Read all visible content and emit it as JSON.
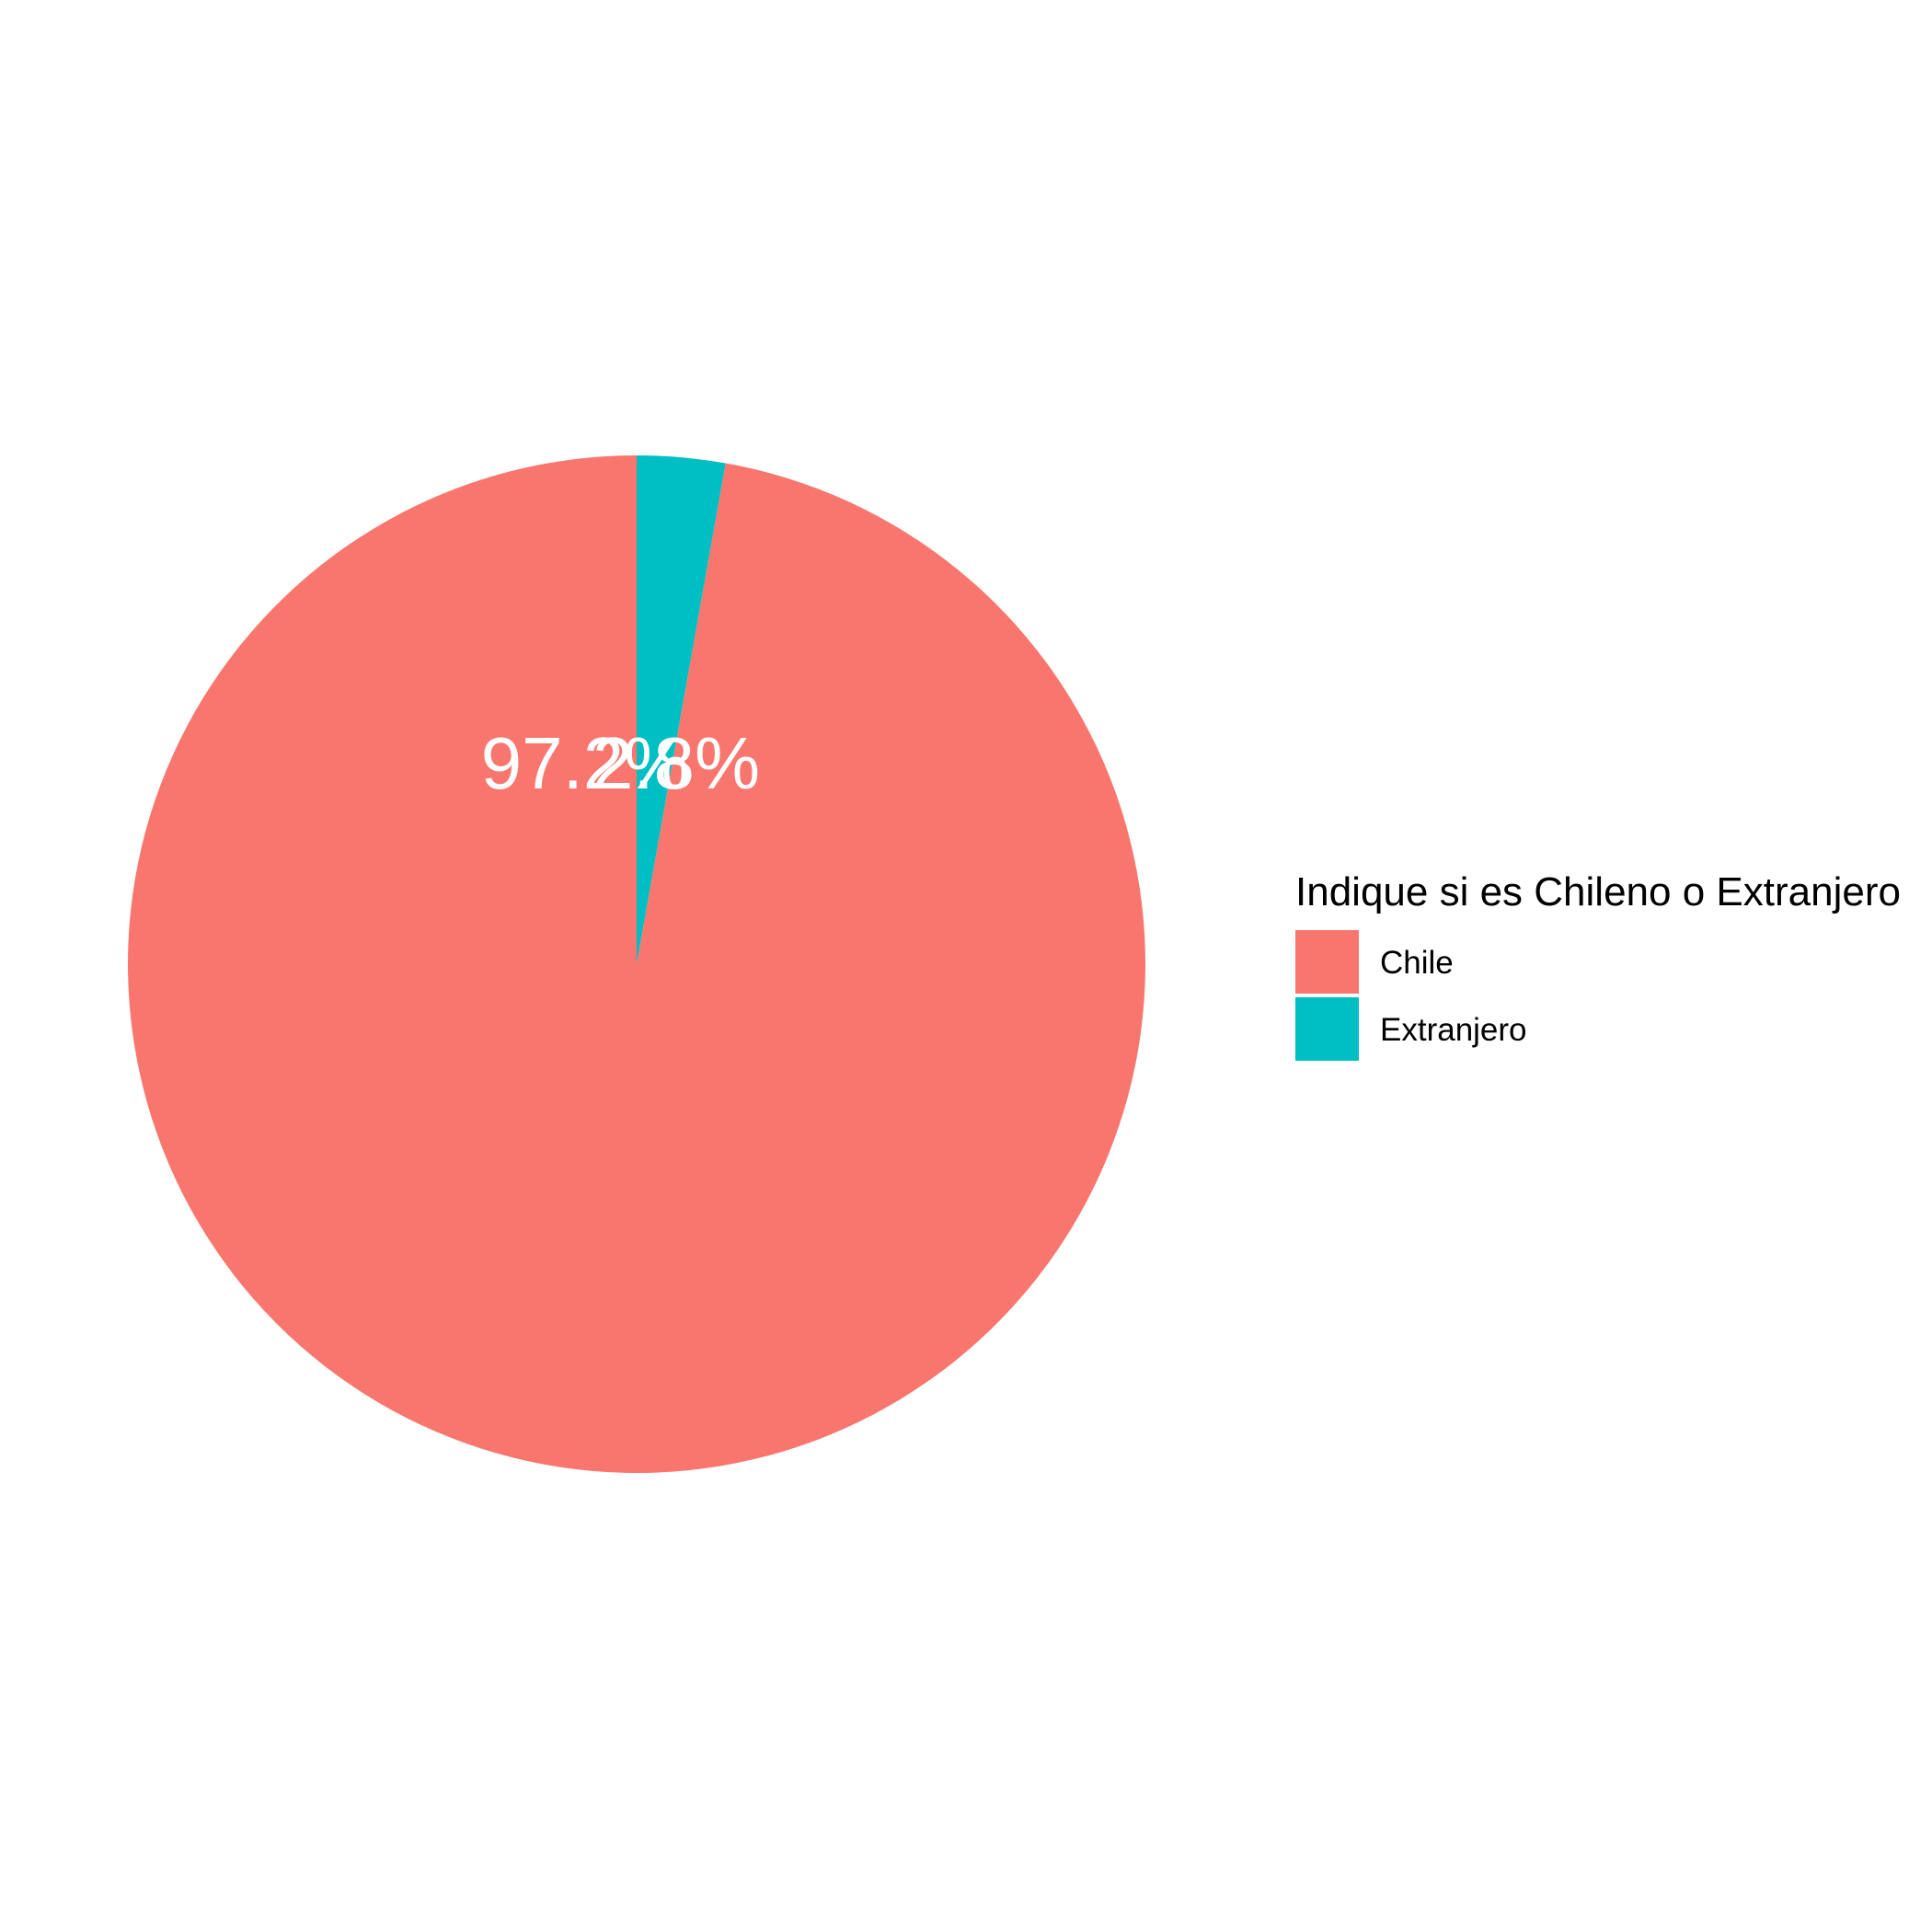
{
  "chart_data": {
    "type": "pie",
    "categories": [
      "Chile",
      "Extranjero"
    ],
    "values": [
      97.2,
      2.8
    ],
    "labels": [
      "97.2%",
      "2.8%"
    ],
    "colors": [
      "#F8766D",
      "#00BFC4"
    ],
    "legend": {
      "title": "Indique si es Chileno o Extranjero",
      "placement": "right",
      "entries": [
        "Chile",
        "Extranjero"
      ]
    },
    "start_angle": "top (12 o'clock)",
    "direction": "counter-clockwise",
    "grid": false
  }
}
